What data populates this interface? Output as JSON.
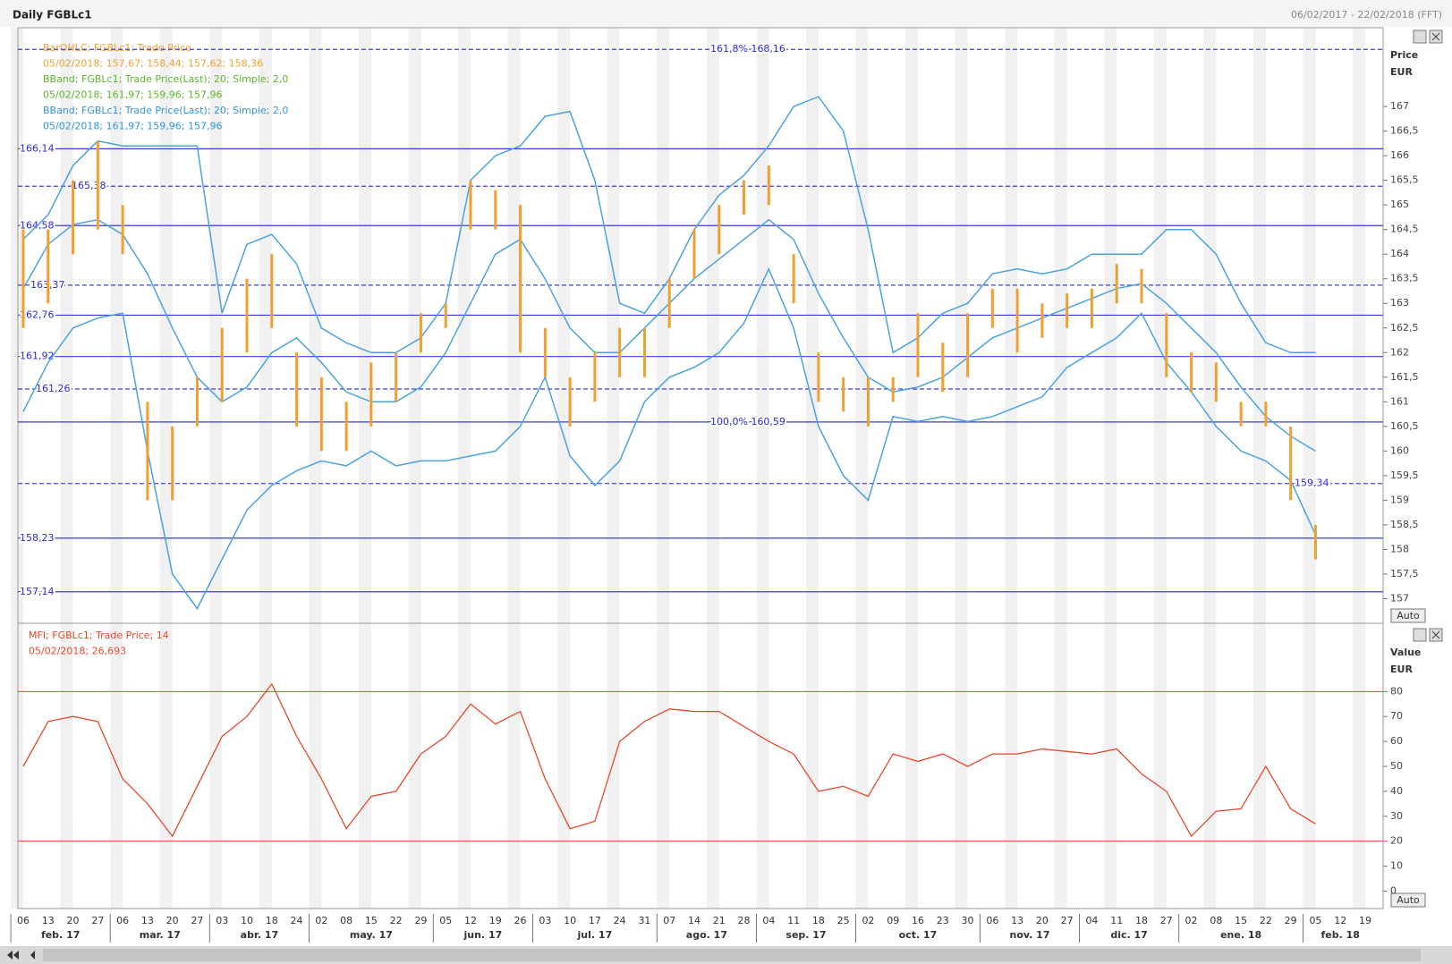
{
  "title": "Daily FGBLc1",
  "date_range": "06/02/2017 - 22/02/2018 (FFT)",
  "chart_data": [
    {
      "type": "ohlc",
      "legend": [
        "BarOHLC; FGBLc1; Trade Price",
        "05/02/2018; 157,67; 158,44; 157,62; 158,36",
        "BBand; FGBLc1; Trade Price(Last); 20; Simple; 2,0",
        "05/02/2018; 161,97; 159,96; 157,96",
        "BBand; FGBLc1; Trade Price(Last); 20; Simple; 2,0",
        "05/02/2018; 161,97; 159,96; 157,96"
      ],
      "legend_colors": [
        "#f0a030",
        "#f0a030",
        "#5fb52e",
        "#5fb52e",
        "#2f95dc",
        "#2f95dc"
      ],
      "y_label": "Price",
      "y_unit": "EUR",
      "auto": "Auto",
      "categories": [
        "06",
        "13",
        "20",
        "27",
        "06",
        "13",
        "20",
        "27",
        "03",
        "10",
        "18",
        "24",
        "02",
        "08",
        "15",
        "22",
        "29",
        "05",
        "12",
        "19",
        "26",
        "03",
        "10",
        "17",
        "24",
        "31",
        "07",
        "14",
        "21",
        "28",
        "04",
        "11",
        "18",
        "25",
        "02",
        "09",
        "16",
        "23",
        "30",
        "06",
        "13",
        "20",
        "27",
        "04",
        "11",
        "18",
        "27",
        "02",
        "08",
        "15",
        "22",
        "29",
        "05",
        "12",
        "19"
      ],
      "months": [
        "feb. 17",
        "mar. 17",
        "abr. 17",
        "may. 17",
        "jun. 17",
        "jul. 17",
        "ago. 17",
        "sep. 17",
        "oct. 17",
        "nov. 17",
        "dic. 17",
        "ene. 18",
        "feb. 18"
      ],
      "color": "#f0a030",
      "high": [
        164.5,
        164.5,
        165.5,
        166.3,
        165,
        161,
        160.5,
        161.5,
        162.5,
        163.5,
        164,
        162,
        161.5,
        161,
        161.8,
        162,
        162.8,
        163,
        165.5,
        165.3,
        165,
        162.5,
        161.5,
        162,
        162.5,
        162.5,
        163.5,
        164.5,
        165,
        165.5,
        165.8,
        164,
        162,
        161.5,
        161.5,
        161.5,
        162.8,
        162.2,
        162.8,
        163.3,
        163.3,
        163,
        163.2,
        163.3,
        163.8,
        163.7,
        162.8,
        162,
        161.8,
        161,
        161,
        160.5,
        158.5,
        null,
        null
      ],
      "low": [
        162.5,
        163,
        164,
        164.5,
        164,
        159,
        159,
        160.5,
        161,
        162,
        162.5,
        160.5,
        160,
        160,
        160.5,
        161,
        162,
        162.5,
        164.5,
        164.5,
        162,
        161.5,
        160.5,
        161,
        161.5,
        161.5,
        162.5,
        163.5,
        164,
        164.8,
        165,
        163,
        161,
        160.8,
        160.5,
        161,
        161.5,
        161.2,
        161.5,
        162.5,
        162,
        162.3,
        162.5,
        162.5,
        163,
        163,
        161.5,
        161.2,
        161,
        160.5,
        160.5,
        159,
        157.8,
        null,
        null
      ],
      "series": [
        {
          "color": "#4aa3df",
          "values": [
            164.3,
            164.8,
            165.8,
            166.3,
            166.2,
            166.2,
            166.2,
            166.2,
            162.8,
            164.2,
            164.4,
            163.8,
            162.5,
            162.2,
            162,
            162,
            162.3,
            163,
            165.5,
            166,
            166.2,
            166.8,
            166.9,
            165.5,
            163,
            162.8,
            163.5,
            164.5,
            165.2,
            165.6,
            166.2,
            167,
            167.2,
            166.5,
            164.5,
            162,
            162.3,
            162.8,
            163,
            163.6,
            163.7,
            163.6,
            163.7,
            164,
            164,
            164,
            164.5,
            164.5,
            164,
            163,
            162.2,
            162,
            162,
            null,
            null
          ]
        },
        {
          "color": "#4aa3df",
          "values": [
            163.3,
            164.2,
            164.6,
            164.7,
            164.4,
            163.6,
            162.5,
            161.5,
            161,
            161.3,
            162,
            162.3,
            161.8,
            161.2,
            161,
            161,
            161.3,
            162,
            163,
            164,
            164.3,
            163.5,
            162.5,
            162,
            162,
            162.5,
            163,
            163.5,
            163.9,
            164.3,
            164.7,
            164.3,
            163.2,
            162.3,
            161.5,
            161.2,
            161.3,
            161.5,
            161.9,
            162.3,
            162.5,
            162.7,
            162.9,
            163.1,
            163.3,
            163.4,
            163,
            162.5,
            162,
            161.3,
            160.7,
            160.3,
            160,
            null,
            null
          ]
        },
        {
          "color": "#4aa3df",
          "values": [
            160.8,
            161.8,
            162.5,
            162.7,
            162.8,
            160,
            157.5,
            156.8,
            157.8,
            158.8,
            159.3,
            159.6,
            159.8,
            159.7,
            160,
            159.7,
            159.8,
            159.8,
            159.9,
            160,
            160.5,
            161.5,
            159.9,
            159.3,
            159.8,
            161,
            161.5,
            161.7,
            162,
            162.6,
            163.7,
            162.5,
            160.5,
            159.5,
            159,
            160.7,
            160.6,
            160.7,
            160.6,
            160.7,
            160.9,
            161.1,
            161.7,
            162,
            162.3,
            162.8,
            161.8,
            161.2,
            160.5,
            160,
            159.8,
            159.4,
            158.3,
            null,
            null
          ]
        }
      ],
      "level_color": "#3b3bdc",
      "levels": [
        {
          "value": 168.16,
          "label": "161,8% 168,16",
          "dashed": true
        },
        {
          "value": 166.14,
          "label": "166,14",
          "dashed": false
        },
        {
          "value": 165.38,
          "label": "165,38",
          "dashed": true
        },
        {
          "value": 164.58,
          "label": "164,58",
          "dashed": false
        },
        {
          "value": 163.37,
          "label": "163,37",
          "dashed": true
        },
        {
          "value": 162.76,
          "label": "162,76",
          "dashed": false
        },
        {
          "value": 161.92,
          "label": "161,92",
          "dashed": false
        },
        {
          "value": 161.26,
          "label": "161,26",
          "dashed": true
        },
        {
          "value": 160.59,
          "label": "100,0% 160,59",
          "dashed": false
        },
        {
          "value": 159.34,
          "label": "159,34",
          "dashed": true
        },
        {
          "value": 158.23,
          "label": "158,23",
          "dashed": false
        },
        {
          "value": 157.14,
          "label": "157,14",
          "dashed": false
        }
      ],
      "ylim": [
        156.5,
        168.6
      ],
      "yticks": [
        157,
        {
          "value": 157.5,
          "label": "157,5"
        },
        158,
        {
          "value": 158.5,
          "label": "158,5"
        },
        159,
        {
          "value": 159.5,
          "label": "159,5"
        },
        160,
        {
          "value": 160.5,
          "label": "160,5"
        },
        161,
        {
          "value": 161.5,
          "label": "161,5"
        },
        162,
        {
          "value": 162.5,
          "label": "162,5"
        },
        163,
        {
          "value": 163.5,
          "label": "163,5"
        },
        164,
        {
          "value": 164.5,
          "label": "164,5"
        },
        165,
        {
          "value": 165.5,
          "label": "165,5"
        },
        166,
        {
          "value": 166.5,
          "label": "166,5"
        },
        167
      ]
    },
    {
      "type": "line",
      "legend": [
        "MFI; FGBLc1; Trade Price;  14",
        "05/02/2018; 26,693"
      ],
      "legend_colors": [
        "#e8472b",
        "#e8472b"
      ],
      "y_label": "Value",
      "y_unit": "EUR",
      "auto": "Auto",
      "color": "#e8472b",
      "values": [
        50,
        68,
        70,
        68,
        45,
        35,
        22,
        42,
        62,
        70,
        83,
        62,
        45,
        25,
        38,
        40,
        55,
        62,
        75,
        67,
        72,
        45,
        25,
        28,
        60,
        68,
        73,
        72,
        72,
        66,
        60,
        55,
        40,
        42,
        38,
        55,
        52,
        55,
        50,
        55,
        55,
        57,
        56,
        55,
        57,
        47,
        40,
        22,
        32,
        33,
        50,
        33,
        27,
        null,
        null
      ],
      "level_color": "#e8472b",
      "levels": [
        {
          "value": 80
        },
        {
          "value": 20
        }
      ],
      "ylim": [
        -7,
        107
      ],
      "yticks": [
        0,
        10,
        20,
        30,
        40,
        50,
        60,
        70,
        80
      ]
    }
  ]
}
